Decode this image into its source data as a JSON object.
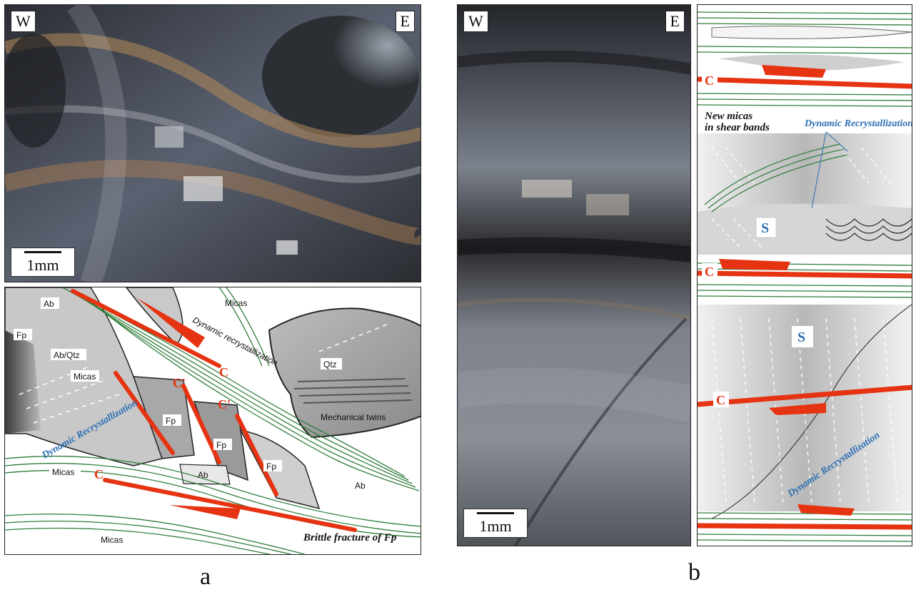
{
  "panel_a": {
    "photo": {
      "west_label": "W",
      "east_label": "E",
      "scale_label": "1mm"
    },
    "sketch": {
      "minerals": [
        "Ab",
        "Fp",
        "Ab/Qtz",
        "Micas",
        "Micas",
        "Qtz",
        "Fp",
        "Fp",
        "Fp",
        "Ab",
        "Micas",
        "Ab",
        "Micas"
      ],
      "mechanical_twins": "Mechanical twins",
      "dynamic_recrystallization": "Dynamic Recrystallization",
      "dynamic_recrystallization_small": "Dynamic recrystallization",
      "c_label": "C",
      "c_prime_label": "C'",
      "brittle_fracture": "Brittle fracture of Fp"
    },
    "letter": "a"
  },
  "panel_b": {
    "photo": {
      "west_label": "W",
      "east_label": "E",
      "scale_label": "1mm"
    },
    "sketch": {
      "c_label": "C",
      "s_label": "S",
      "new_micas": "New micas",
      "in_shear_bands": "in shear bands",
      "dynamic_recrystallization": "Dynamic Recrystallization"
    },
    "letter": "b"
  },
  "colors": {
    "shear_red": "#e63312",
    "mica_green": "#2e7d3a",
    "recryst_blue": "#2d6fb5"
  }
}
